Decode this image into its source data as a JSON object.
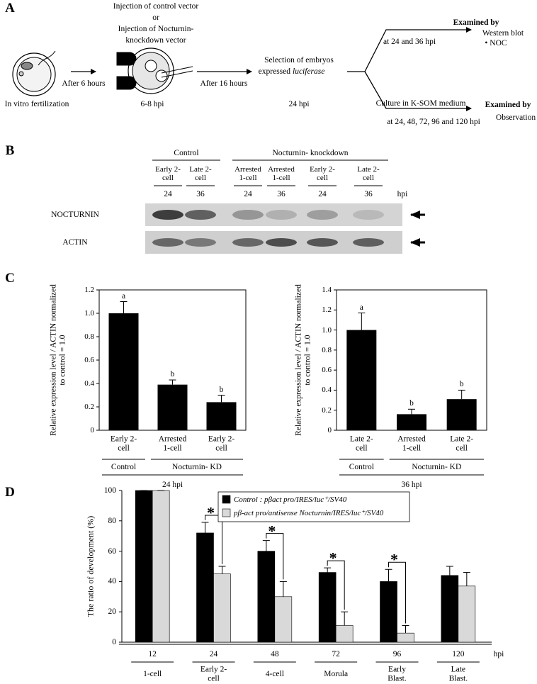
{
  "panel_labels": [
    "A",
    "B",
    "C",
    "D"
  ],
  "scheme": {
    "injection_lines": [
      "Injection of  control vector",
      "or",
      "Injection of Nocturnin-",
      "knockdown vector"
    ],
    "step1_arrow": "After 6 hours",
    "step2_arrow": "After 16 hours",
    "fertilization": "In vitro fertilization",
    "injection_time": "6-8 hpi",
    "selection_lines": [
      "Selection of embryos",
      "expressed",
      "luciferase"
    ],
    "selection_time": "24 hpi",
    "branch_top": "at 24 and 36 hpi",
    "branch_top_examined": "Examined by",
    "branch_top_method": "Western blot",
    "branch_top_target": "• NOC",
    "branch_bottom": "Culture in K-SOM medium",
    "branch_bottom_time": "at 24, 48, 72, 96 and 120 hpi",
    "branch_bottom_examined": "Examined by",
    "branch_bottom_method": "Observation"
  },
  "blot": {
    "groups": [
      "Control",
      "Nocturnin- knockdown"
    ],
    "lanes": [
      "Early 2-cell",
      "Late 2-cell",
      "Arrested 1-cell",
      "Arrested 1-cell",
      "Early 2-cell",
      "Late 2-cell"
    ],
    "times": [
      "24",
      "36",
      "24",
      "36",
      "24",
      "36"
    ],
    "time_unit": "hpi",
    "rows": [
      "NOCTURNIN",
      "ACTIN"
    ]
  },
  "chart_data": [
    {
      "type": "bar",
      "y_label": "Relative expression level / ACTIN normalized to control = 1.0",
      "categories": [
        "Early 2-cell",
        "Arrested 1-cell",
        "Early 2-cell"
      ],
      "values": [
        1.0,
        0.39,
        0.24
      ],
      "errors": [
        0.1,
        0.04,
        0.06
      ],
      "letters": [
        "a",
        "b",
        "b"
      ],
      "color": "#000000",
      "groups": [
        "Control",
        "Nocturnin- KD"
      ],
      "x_label": "24 hpi",
      "ylim": [
        0,
        1.2
      ],
      "yticks": [
        0,
        0.2,
        0.4,
        0.6,
        0.8,
        {
          "value": 1,
          "label": "1.0"
        },
        1.2
      ]
    },
    {
      "type": "bar",
      "y_label": "Relative expression level / ACTIN normalized to control = 1.0",
      "categories": [
        "Late 2-cell",
        "Arrested 1-cell",
        "Late 2-cell"
      ],
      "values": [
        1.0,
        0.16,
        0.31
      ],
      "errors": [
        0.17,
        0.05,
        0.09
      ],
      "letters": [
        "a",
        "b",
        "b"
      ],
      "color": "#000000",
      "groups": [
        "Control",
        "Nocturnin- KD"
      ],
      "x_label": "36 hpi",
      "ylim": [
        0,
        1.4
      ],
      "yticks": [
        0,
        0.2,
        0.4,
        0.6,
        0.8,
        {
          "value": 1,
          "label": "1.0"
        },
        1.2,
        1.4
      ]
    },
    {
      "type": "grouped_bar",
      "y_label": "The ratio of development (%)",
      "categories": [
        "12",
        "24",
        "48",
        "72",
        "96",
        "120"
      ],
      "stages": [
        "1-cell",
        "Early 2-cell",
        "4-cell",
        "Morula",
        "Early Blast.",
        "Late Blast."
      ],
      "x_unit": "hpi",
      "series": [
        {
          "name": "Control : pβact pro/IRES/luc⁺/SV40",
          "color": "#000000",
          "values": [
            100,
            72,
            60,
            46,
            40,
            44
          ],
          "errors": [
            0,
            7,
            7,
            3,
            8,
            6
          ]
        },
        {
          "name": "pβ-act pro/antisense Nocturnin/IRES/luc⁺/SV40",
          "color": "#d9d9d9",
          "values": [
            100,
            45,
            30,
            11,
            6,
            37
          ],
          "errors": [
            0,
            5,
            10,
            9,
            5,
            9
          ]
        }
      ],
      "markers": [
        null,
        "*",
        "*",
        "*",
        "*",
        null
      ],
      "ylim": [
        0,
        100
      ],
      "yticks": [
        0,
        20,
        40,
        60,
        80,
        100
      ]
    }
  ]
}
